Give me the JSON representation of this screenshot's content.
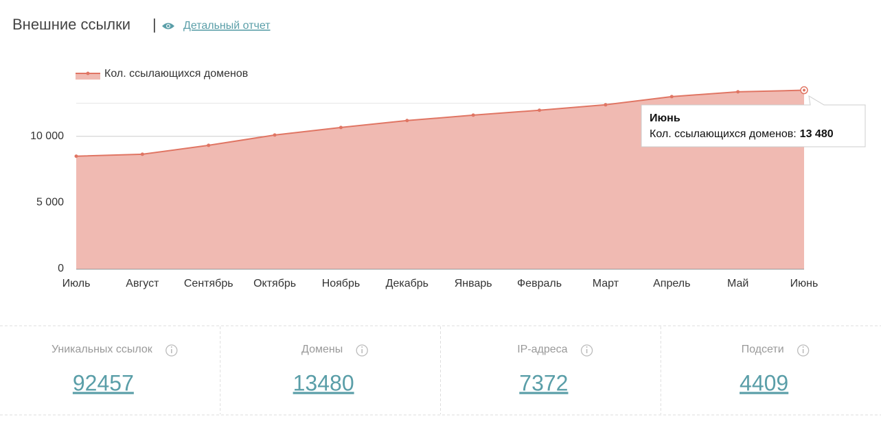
{
  "header": {
    "title": "Внешние ссылки",
    "separator": "|",
    "link": "Детальный отчет"
  },
  "chart_data": {
    "type": "area",
    "categories": [
      "Июль",
      "Август",
      "Сентябрь",
      "Октябрь",
      "Ноябрь",
      "Декабрь",
      "Январь",
      "Февраль",
      "Март",
      "Апрель",
      "Май",
      "Июнь"
    ],
    "series": [
      {
        "name": "Кол. ссылающихся доменов",
        "color": "#e07563",
        "fill": "#f0bab2",
        "values": [
          8500,
          8650,
          9320,
          10100,
          10670,
          11190,
          11600,
          11970,
          12380,
          13000,
          13360,
          13480
        ]
      }
    ],
    "ylim": [
      0,
      14000
    ],
    "yticks": [
      0,
      {
        "value": 5000,
        "label": "5 000"
      },
      {
        "value": 10000,
        "label": "10 000"
      }
    ],
    "gridlines": [
      2500,
      7500,
      12500
    ],
    "grid": true,
    "legend": "top-left",
    "tooltip": {
      "title": "Июнь",
      "label": "Кол. ссылающихся доменов:",
      "value": "13 480"
    }
  },
  "stats": [
    {
      "label": "Уникальных ссылок",
      "value": 92457
    },
    {
      "label": "Домены",
      "value": 13480
    },
    {
      "label": "IP-адреса",
      "value": 7372
    },
    {
      "label": "Подсети",
      "value": 4409
    }
  ]
}
